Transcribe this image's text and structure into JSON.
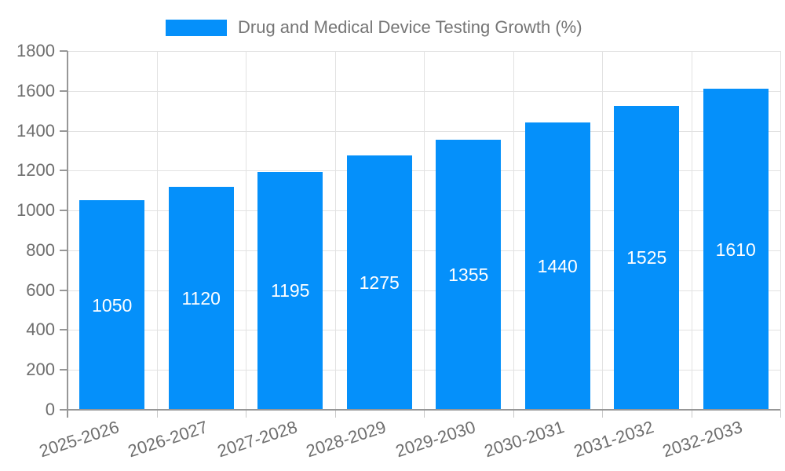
{
  "chart": {
    "legend": {
      "label": "Drug and Medical Device Testing Growth (%)"
    }
  },
  "chart_data": {
    "type": "bar",
    "title": "Drug and Medical Device Testing Growth (%)",
    "categories": [
      "2025-2026",
      "2026-2027",
      "2027-2028",
      "2028-2029",
      "2029-2030",
      "2030-2031",
      "2031-2032",
      "2032-2033"
    ],
    "values": [
      1050,
      1120,
      1195,
      1275,
      1355,
      1440,
      1525,
      1610
    ],
    "bar_value_labels": [
      "1050",
      "1120",
      "1195",
      "1275",
      "1355",
      "1440",
      "1525",
      "1610"
    ],
    "xlabel": "",
    "ylabel": "",
    "ylim": [
      0,
      1800
    ],
    "ytick_step": 200,
    "ytick_labels": [
      "0",
      "200",
      "400",
      "600",
      "800",
      "1000",
      "1200",
      "1400",
      "1600",
      "1800"
    ],
    "grid": true,
    "legend_position": "top",
    "x_label_rotation_deg": -18,
    "colors": {
      "bar": "#0590FA",
      "bar_value_text": "#FFFFFF",
      "axis_text": "#6E6E6E",
      "legend_text": "#757575",
      "grid_line": "#E2E2E2",
      "axis_line": "#979797",
      "x_tick": "#C9C9C9",
      "background": "#FFFFFF"
    }
  }
}
